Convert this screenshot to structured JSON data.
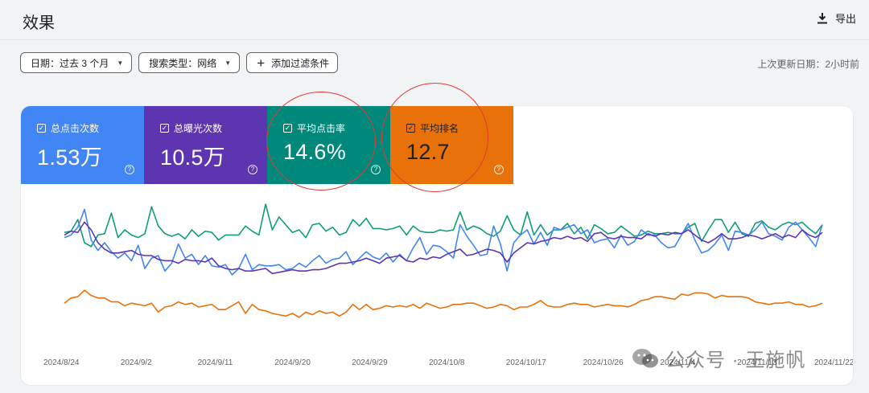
{
  "header": {
    "title": "效果",
    "export_label": "导出"
  },
  "filters": [
    {
      "label": "日期：过去 3 个月",
      "type": "dropdown"
    },
    {
      "label": "搜索类型：网络",
      "type": "dropdown"
    },
    {
      "label": "添加过滤条件",
      "type": "add"
    }
  ],
  "last_updated": "上次更新日期：2小时前",
  "metrics": [
    {
      "label": "总点击次数",
      "value": "1.53万",
      "color": "#4285f4"
    },
    {
      "label": "总曝光次数",
      "value": "10.5万",
      "color": "#5e35b1"
    },
    {
      "label": "平均点击率",
      "value": "14.6%",
      "color": "#00897b"
    },
    {
      "label": "平均排名",
      "value": "12.7",
      "color": "#e8710a"
    }
  ],
  "checkbox_mark": "✓",
  "help_mark": "?",
  "watermark": "公众号 · 王施帆",
  "chart_data": {
    "type": "line",
    "x_tick_labels": [
      "2024/8/24",
      "2024/9/2",
      "2024/9/11",
      "2024/9/20",
      "2024/9/29",
      "2024/10/8",
      "2024/10/17",
      "2024/10/26",
      "2024/11/4",
      "2024/11/13",
      "2024/11/22"
    ],
    "grid": false,
    "series": [
      {
        "name": "平均点击率",
        "color": "#0f9d7a",
        "values": [
          0.78,
          0.79,
          0.88,
          0.7,
          0.67,
          0.76,
          0.77,
          0.93,
          0.74,
          0.8,
          0.76,
          0.74,
          0.77,
          0.98,
          0.83,
          0.77,
          0.75,
          0.77,
          0.73,
          0.8,
          0.75,
          0.79,
          0.78,
          0.72,
          0.76,
          0.76,
          0.76,
          0.83,
          0.79,
          0.76,
          1.0,
          0.8,
          0.9,
          0.84,
          0.78,
          0.8,
          0.74,
          0.84,
          0.85,
          0.79,
          0.82,
          0.76,
          0.78,
          0.88,
          0.83,
          0.89,
          0.81,
          0.81,
          0.8,
          0.81,
          0.83,
          0.76,
          0.83,
          0.79,
          0.78,
          0.78,
          0.8,
          0.79,
          0.8,
          0.94,
          0.8,
          0.83,
          0.81,
          0.77,
          0.75,
          0.79,
          0.91,
          0.8,
          0.76,
          0.94,
          0.76,
          0.84,
          0.76,
          0.8,
          0.8,
          0.85,
          0.77,
          0.82,
          0.73,
          0.84,
          0.81,
          0.77,
          0.78,
          0.83,
          0.79,
          0.75,
          0.76,
          0.79,
          0.77,
          0.77,
          0.78,
          0.77,
          0.77,
          0.82,
          0.85,
          0.71,
          0.8,
          0.88,
          0.88,
          0.78,
          0.86,
          0.77,
          0.75,
          0.85,
          0.87,
          0.82,
          0.8,
          0.84,
          0.86,
          0.84,
          0.86,
          0.81,
          0.77,
          0.84
        ]
      },
      {
        "name": "总点击次数",
        "color": "#4285f4",
        "values": [
          0.74,
          0.76,
          0.82,
          0.96,
          0.72,
          0.64,
          0.7,
          0.63,
          0.58,
          0.62,
          0.56,
          0.68,
          0.5,
          0.58,
          0.6,
          0.48,
          0.54,
          0.69,
          0.58,
          0.61,
          0.53,
          0.6,
          0.52,
          0.51,
          0.53,
          0.45,
          0.5,
          0.61,
          0.49,
          0.53,
          0.52,
          0.52,
          0.53,
          0.49,
          0.5,
          0.54,
          0.51,
          0.56,
          0.6,
          0.54,
          0.57,
          0.58,
          0.63,
          0.53,
          0.58,
          0.63,
          0.59,
          0.57,
          0.62,
          0.55,
          0.61,
          0.56,
          0.66,
          0.74,
          0.61,
          0.68,
          0.67,
          0.63,
          0.58,
          0.84,
          0.75,
          0.68,
          0.6,
          0.61,
          0.83,
          0.69,
          0.48,
          0.7,
          0.76,
          0.8,
          0.69,
          0.78,
          0.68,
          0.82,
          0.8,
          0.82,
          0.84,
          0.77,
          0.8,
          0.7,
          0.72,
          0.73,
          0.66,
          0.76,
          0.68,
          0.71,
          0.8,
          0.76,
          0.76,
          0.7,
          0.66,
          0.67,
          0.76,
          0.85,
          0.72,
          0.62,
          0.64,
          0.69,
          0.76,
          0.64,
          0.79,
          0.78,
          0.76,
          0.8,
          0.86,
          0.77,
          0.75,
          0.72,
          0.82,
          0.86,
          0.8,
          0.74,
          0.67,
          0.84
        ]
      },
      {
        "name": "总曝光次数",
        "color": "#5e35b1",
        "values": [
          0.76,
          0.79,
          0.78,
          0.86,
          0.8,
          0.7,
          0.65,
          0.62,
          0.62,
          0.63,
          0.64,
          0.61,
          0.6,
          0.6,
          0.57,
          0.56,
          0.56,
          0.54,
          0.57,
          0.56,
          0.56,
          0.55,
          0.58,
          0.52,
          0.5,
          0.49,
          0.5,
          0.48,
          0.48,
          0.49,
          0.5,
          0.46,
          0.47,
          0.48,
          0.49,
          0.48,
          0.48,
          0.49,
          0.49,
          0.5,
          0.52,
          0.54,
          0.54,
          0.55,
          0.56,
          0.58,
          0.56,
          0.54,
          0.58,
          0.59,
          0.6,
          0.56,
          0.55,
          0.58,
          0.57,
          0.59,
          0.58,
          0.61,
          0.63,
          0.65,
          0.6,
          0.61,
          0.63,
          0.65,
          0.64,
          0.62,
          0.55,
          0.62,
          0.66,
          0.7,
          0.69,
          0.71,
          0.72,
          0.74,
          0.73,
          0.75,
          0.73,
          0.74,
          0.71,
          0.77,
          0.78,
          0.74,
          0.73,
          0.75,
          0.74,
          0.74,
          0.73,
          0.77,
          0.75,
          0.77,
          0.76,
          0.78,
          0.77,
          0.8,
          0.76,
          0.72,
          0.7,
          0.73,
          0.77,
          0.73,
          0.73,
          0.74,
          0.76,
          0.75,
          0.73,
          0.75,
          0.77,
          0.74,
          0.76,
          0.74,
          0.8,
          0.76,
          0.74,
          0.78
        ]
      },
      {
        "name": "平均排名",
        "color": "#e8710a",
        "values": [
          0.23,
          0.27,
          0.28,
          0.33,
          0.29,
          0.27,
          0.27,
          0.24,
          0.24,
          0.21,
          0.23,
          0.22,
          0.21,
          0.23,
          0.16,
          0.2,
          0.21,
          0.24,
          0.22,
          0.23,
          0.2,
          0.21,
          0.22,
          0.18,
          0.18,
          0.21,
          0.24,
          0.15,
          0.22,
          0.18,
          0.17,
          0.15,
          0.14,
          0.13,
          0.15,
          0.12,
          0.16,
          0.14,
          0.17,
          0.15,
          0.16,
          0.13,
          0.16,
          0.22,
          0.18,
          0.22,
          0.18,
          0.19,
          0.21,
          0.2,
          0.21,
          0.2,
          0.22,
          0.19,
          0.23,
          0.21,
          0.19,
          0.2,
          0.22,
          0.22,
          0.23,
          0.23,
          0.21,
          0.19,
          0.2,
          0.22,
          0.21,
          0.18,
          0.2,
          0.2,
          0.22,
          0.25,
          0.21,
          0.2,
          0.2,
          0.22,
          0.23,
          0.22,
          0.22,
          0.2,
          0.21,
          0.22,
          0.21,
          0.21,
          0.2,
          0.22,
          0.25,
          0.26,
          0.28,
          0.28,
          0.27,
          0.26,
          0.3,
          0.29,
          0.31,
          0.31,
          0.3,
          0.27,
          0.29,
          0.28,
          0.28,
          0.28,
          0.27,
          0.24,
          0.23,
          0.22,
          0.23,
          0.23,
          0.24,
          0.22,
          0.22,
          0.2,
          0.21,
          0.23
        ]
      }
    ]
  }
}
